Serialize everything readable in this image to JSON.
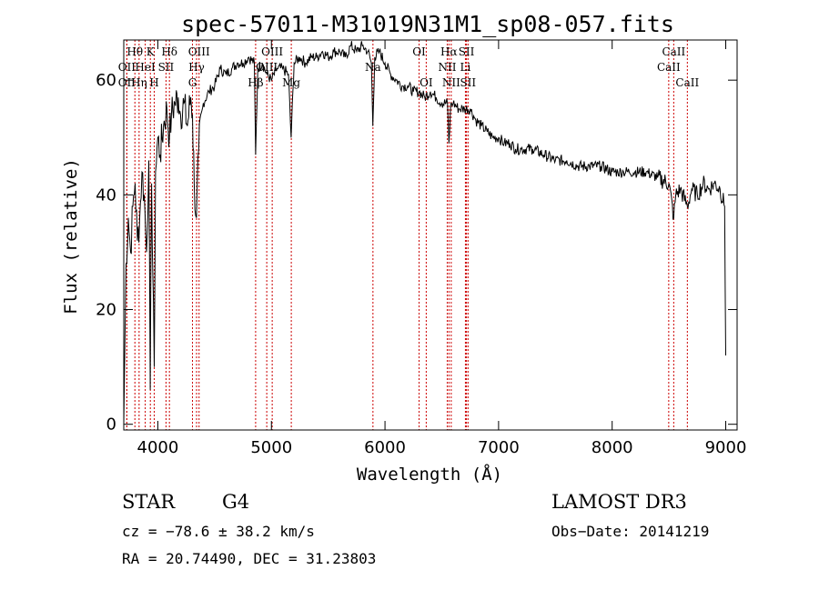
{
  "chart_data": {
    "type": "line",
    "title": "spec-57011-M31019N31M1_sp08-057.fits",
    "xlabel": "Wavelength (Å)",
    "ylabel": "Flux (relative)",
    "xlim": [
      3700,
      9100
    ],
    "ylim": [
      -1,
      67
    ],
    "xticks": [
      4000,
      5000,
      6000,
      7000,
      8000,
      9000
    ],
    "yticks": [
      0,
      20,
      40,
      60
    ],
    "series": [
      {
        "name": "flux",
        "x": [
          3700,
          3720,
          3740,
          3760,
          3780,
          3800,
          3820,
          3840,
          3860,
          3880,
          3900,
          3920,
          3933,
          3945,
          3968,
          3980,
          4000,
          4020,
          4050,
          4080,
          4102,
          4120,
          4150,
          4180,
          4200,
          4230,
          4260,
          4290,
          4305,
          4320,
          4340,
          4360,
          4400,
          4450,
          4500,
          4550,
          4600,
          4650,
          4700,
          4750,
          4800,
          4850,
          4861,
          4880,
          4920,
          4960,
          5000,
          5050,
          5100,
          5150,
          5173,
          5200,
          5250,
          5300,
          5350,
          5400,
          5450,
          5500,
          5550,
          5600,
          5650,
          5700,
          5750,
          5800,
          5850,
          5880,
          5893,
          5910,
          5950,
          6000,
          6050,
          6100,
          6150,
          6200,
          6250,
          6300,
          6350,
          6400,
          6450,
          6500,
          6550,
          6563,
          6580,
          6600,
          6650,
          6700,
          6750,
          6800,
          6850,
          6900,
          6950,
          7000,
          7050,
          7100,
          7150,
          7200,
          7300,
          7400,
          7500,
          7600,
          7700,
          7800,
          7900,
          8000,
          8050,
          8100,
          8150,
          8200,
          8300,
          8400,
          8500,
          8542,
          8560,
          8600,
          8662,
          8700,
          8750,
          8800,
          8850,
          8900,
          8950,
          8990,
          9000
        ],
        "y": [
          0,
          28,
          36,
          30,
          38,
          42,
          32,
          36,
          44,
          40,
          30,
          46,
          6,
          42,
          10,
          44,
          50,
          47,
          52,
          55,
          50,
          54,
          56,
          57,
          54,
          56,
          52,
          57,
          54,
          42,
          36,
          48,
          56,
          58,
          59,
          62,
          61,
          62,
          63,
          63,
          64,
          63,
          47,
          62,
          63,
          61,
          60,
          62,
          62,
          61,
          50,
          63,
          64,
          63,
          64,
          64,
          65,
          64,
          65,
          65,
          64,
          66,
          65,
          66,
          65,
          63,
          52,
          64,
          65,
          63,
          61,
          60,
          59,
          59,
          58,
          58,
          57,
          58,
          57,
          56,
          56,
          49,
          56,
          56,
          55,
          55,
          55,
          53,
          52,
          51,
          50,
          50,
          49,
          49,
          48,
          48,
          48,
          47,
          46,
          46,
          45,
          45,
          45,
          44,
          44,
          44,
          44,
          44,
          44,
          43,
          42,
          36,
          40,
          41,
          38,
          41,
          40,
          42,
          41,
          42,
          41,
          38,
          12
        ]
      }
    ],
    "line_markers": [
      {
        "name": "OII",
        "x": 3727,
        "row": 3
      },
      {
        "name": "OII",
        "x": 3727,
        "row": 2
      },
      {
        "name": "Hθ",
        "x": 3798,
        "row": 1
      },
      {
        "name": "Hη",
        "x": 3835,
        "row": 3
      },
      {
        "name": "HeI",
        "x": 3889,
        "row": 2
      },
      {
        "name": "K",
        "x": 3934,
        "row": 1
      },
      {
        "name": "H",
        "x": 3968,
        "row": 3
      },
      {
        "name": "SII",
        "x": 4072,
        "row": 2
      },
      {
        "name": "Hδ",
        "x": 4102,
        "row": 1
      },
      {
        "name": "G",
        "x": 4305,
        "row": 3
      },
      {
        "name": "Hγ",
        "x": 4341,
        "row": 2
      },
      {
        "name": "OIII",
        "x": 4363,
        "row": 1
      },
      {
        "name": "Hβ",
        "x": 4861,
        "row": 3
      },
      {
        "name": "OIII",
        "x": 4959,
        "row": 2
      },
      {
        "name": "OIII",
        "x": 5007,
        "row": 1
      },
      {
        "name": "Mg",
        "x": 5175,
        "row": 3
      },
      {
        "name": "Na",
        "x": 5894,
        "row": 2
      },
      {
        "name": "OI",
        "x": 6300,
        "row": 1
      },
      {
        "name": "OI",
        "x": 6363,
        "row": 3
      },
      {
        "name": "NII",
        "x": 6548,
        "row": 2
      },
      {
        "name": "Hα",
        "x": 6563,
        "row": 1
      },
      {
        "name": "NII",
        "x": 6583,
        "row": 3
      },
      {
        "name": "Li",
        "x": 6708,
        "row": 2
      },
      {
        "name": "SII",
        "x": 6717,
        "row": 1
      },
      {
        "name": "SII",
        "x": 6731,
        "row": 3
      },
      {
        "name": "CaII",
        "x": 8498,
        "row": 2
      },
      {
        "name": "CaII",
        "x": 8542,
        "row": 1
      },
      {
        "name": "CaII",
        "x": 8662,
        "row": 3
      }
    ]
  },
  "info": {
    "object_class": "STAR",
    "subclass": "G4",
    "survey": "LAMOST DR3",
    "cz": "cz = −78.6 ± 38.2 km/s",
    "obs_date": "Obs−Date: 20141219",
    "coords": "RA =  20.74490, DEC =  31.23803"
  },
  "colors": {
    "marker": "#cc0000",
    "spectrum": "#000000"
  }
}
